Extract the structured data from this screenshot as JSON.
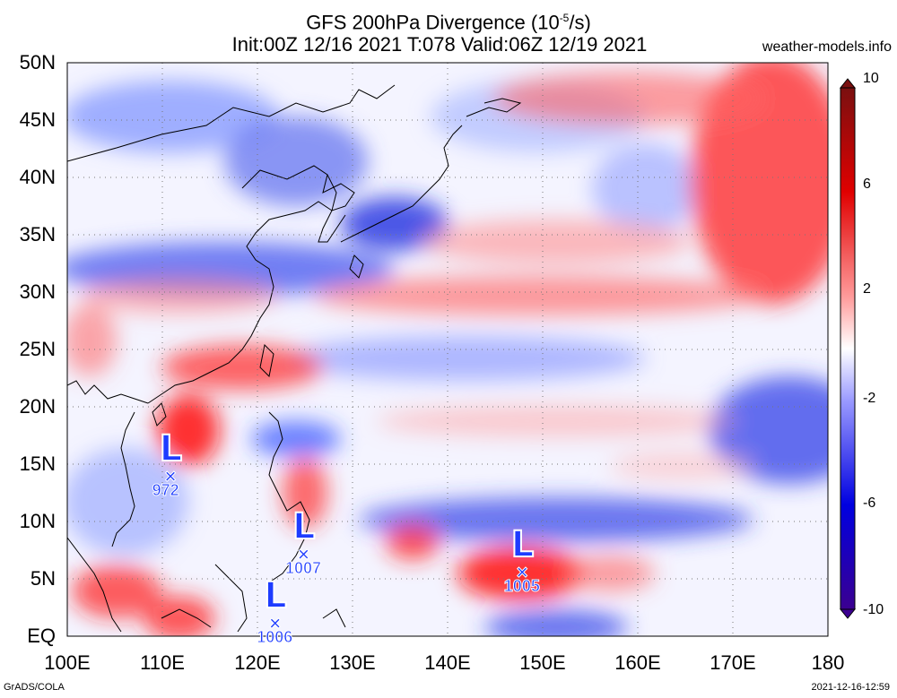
{
  "header": {
    "title_line1": "GFS 200hPa Divergence (10",
    "title_sup": "-5",
    "title_unit": "/s)",
    "title_line2": "Init:00Z 12/16 2021 T:078 Valid:06Z 12/19 2021",
    "site": "weather-models.info"
  },
  "map": {
    "lat_labels": [
      "50N",
      "45N",
      "40N",
      "35N",
      "30N",
      "25N",
      "20N",
      "15N",
      "10N",
      "5N",
      "EQ"
    ],
    "lon_labels": [
      "100E",
      "110E",
      "120E",
      "130E",
      "140E",
      "150E",
      "160E",
      "170E",
      "180"
    ],
    "lat_range": [
      0,
      50
    ],
    "lon_range": [
      100,
      180
    ],
    "grid": "dotted"
  },
  "colorbar": {
    "labels": [
      "10",
      "6",
      "2",
      "-2",
      "-6",
      "-10"
    ],
    "range": [
      -10,
      10
    ],
    "colors": {
      "high": "#d10000",
      "mid": "#ffffff",
      "low": "#0000d0",
      "max": "#7a1010",
      "min": "#3b0090"
    }
  },
  "lows": [
    {
      "symbol": "L",
      "marker": "×",
      "pressure": "972",
      "lon": 111,
      "lat": 13.8
    },
    {
      "symbol": "L",
      "marker": "×",
      "pressure": "1007",
      "lon": 125,
      "lat": 7
    },
    {
      "symbol": "L",
      "marker": "×",
      "pressure": "1005",
      "lon": 148,
      "lat": 5.5
    },
    {
      "symbol": "L",
      "marker": "×",
      "pressure": "1006",
      "lon": 122,
      "lat": 1
    }
  ],
  "footer": {
    "left": "GrADS/COLA",
    "right": "2021-12-16-12:59"
  }
}
